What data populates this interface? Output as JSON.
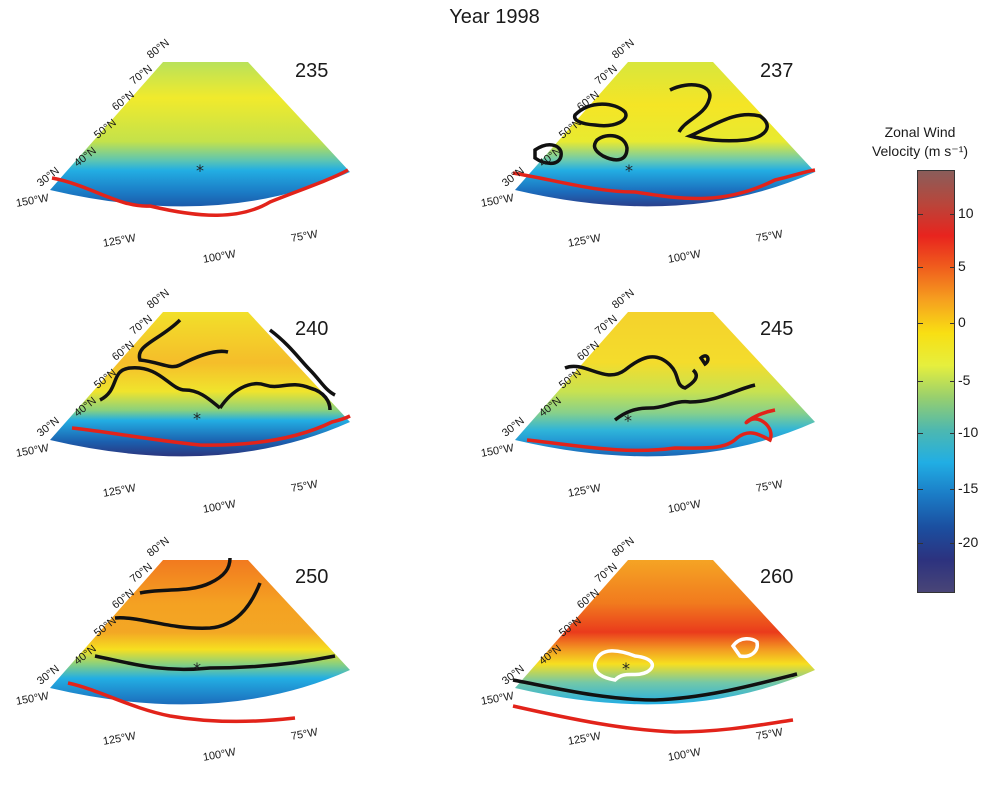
{
  "title": "Year 1998",
  "latitude_labels": [
    "80°N",
    "70°N",
    "60°N",
    "50°N",
    "40°N",
    "30°N"
  ],
  "longitude_labels": [
    "150°W",
    "125°W",
    "100°W",
    "75°W"
  ],
  "colorbar": {
    "title_line1": "Zonal Wind",
    "title_line2": "Velocity (m s⁻¹)",
    "ticks": [
      "10",
      "5",
      "0",
      "-5",
      "-10",
      "-15",
      "-20"
    ],
    "colors": [
      "#8a5d5a",
      "#b8463b",
      "#e8241e",
      "#f05f1d",
      "#f6a11f",
      "#f8df13",
      "#e6ef3d",
      "#97cf6e",
      "#4db8b0",
      "#21aee4",
      "#1b7cc6",
      "#1b4fa0",
      "#2c327f",
      "#494577"
    ]
  },
  "panels": [
    {
      "day": "235",
      "contours": [],
      "marker": true
    },
    {
      "day": "237",
      "contours": [
        "0"
      ],
      "marker": true
    },
    {
      "day": "240",
      "contours": [
        "0"
      ],
      "marker": true
    },
    {
      "day": "245",
      "contours": [
        "0",
        "-10"
      ],
      "marker": true
    },
    {
      "day": "250",
      "contours": [
        "0"
      ],
      "marker": true
    },
    {
      "day": "260",
      "contours": [
        "0",
        "10"
      ],
      "marker": true
    }
  ]
}
